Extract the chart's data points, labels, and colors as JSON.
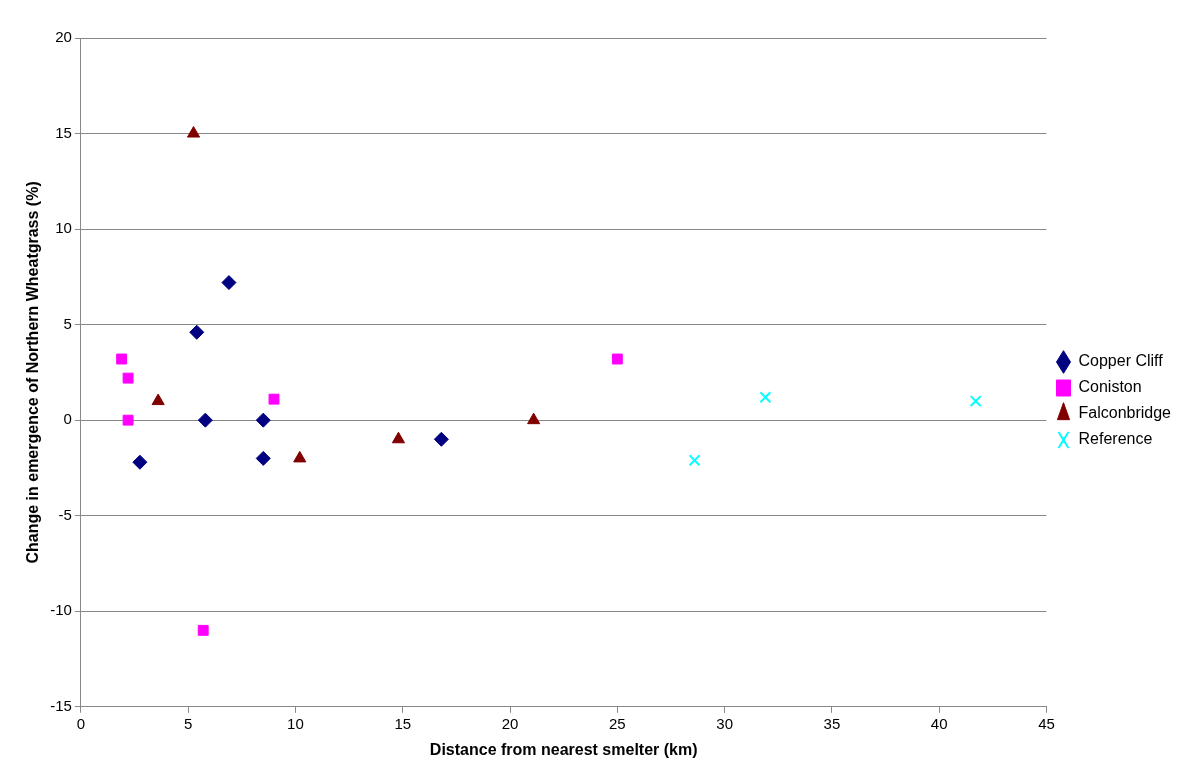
{
  "chart_data": {
    "type": "scatter",
    "xlabel": "Distance from nearest smelter (km)",
    "ylabel": "Change in emergence of Northern Wheatgrass (%)",
    "xlim": [
      0,
      45
    ],
    "xticks": [
      0,
      5,
      10,
      15,
      20,
      25,
      30,
      35,
      40,
      45
    ],
    "ylim": [
      -15,
      20
    ],
    "yticks": [
      -15,
      -10,
      -5,
      0,
      5,
      10,
      15,
      20
    ],
    "grid": "y",
    "legend": "right",
    "series": [
      {
        "name": "Copper Cliff",
        "color": "#000080",
        "marker": "diamond",
        "x": [
          2.75,
          5.4,
          6.9,
          5.8,
          8.5,
          8.5,
          16.8
        ],
        "values": [
          -2.2,
          4.6,
          7.2,
          0,
          0,
          -2,
          -1
        ]
      },
      {
        "name": "Coniston",
        "color": "#ff00ff",
        "marker": "square",
        "x": [
          1.9,
          2.2,
          2.2,
          5.7,
          9.0,
          25.0
        ],
        "values": [
          3.2,
          2.2,
          0,
          -11,
          1.1,
          3.2
        ]
      },
      {
        "name": "Falconbridge",
        "color": "#800000",
        "marker": "triangle",
        "x": [
          5.25,
          3.6,
          10.2,
          14.8,
          21.1
        ],
        "values": [
          15,
          1,
          -2,
          -1,
          0
        ]
      },
      {
        "name": "Reference",
        "color": "#00ffff",
        "marker": "cross",
        "x": [
          28.6,
          31.9,
          41.7
        ],
        "values": [
          -2.1,
          1.2,
          1.0
        ]
      }
    ]
  }
}
